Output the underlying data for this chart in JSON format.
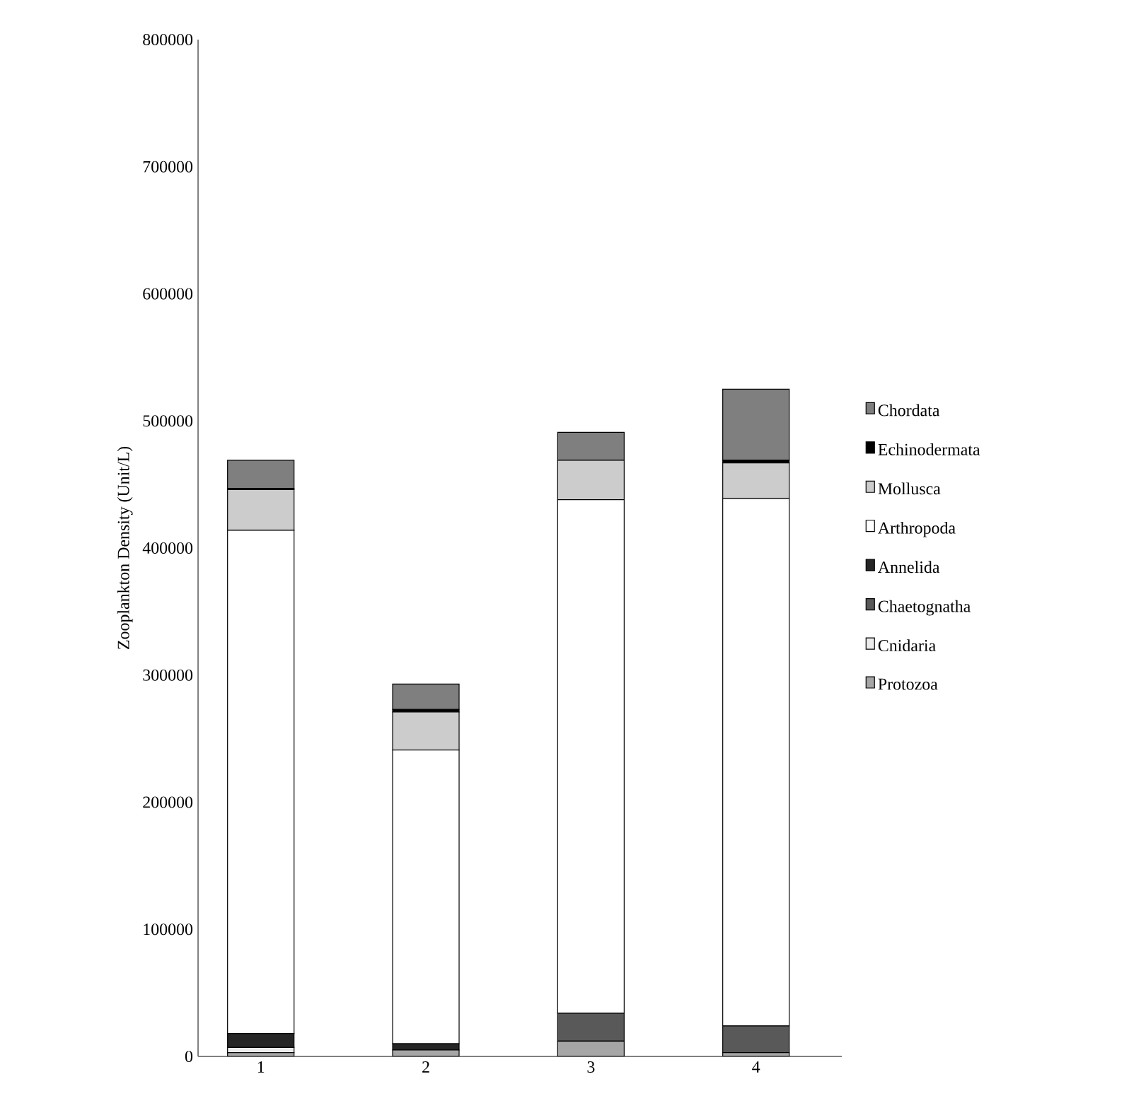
{
  "chart_data": {
    "type": "bar",
    "stacked": true,
    "ylabel": "Zooplankton Density (Unit/L)",
    "categories": [
      "1",
      "2",
      "3",
      "4"
    ],
    "series": [
      {
        "name": "Protozoa",
        "color": "#a6a6a6",
        "values": [
          3000,
          5000,
          12000,
          3000
        ]
      },
      {
        "name": "Cnidaria",
        "color": "#ececec",
        "values": [
          4000,
          0,
          0,
          0
        ]
      },
      {
        "name": "Chaetognatha",
        "color": "#595959",
        "values": [
          0,
          0,
          22000,
          21000
        ]
      },
      {
        "name": "Annelida",
        "color": "#262626",
        "values": [
          11000,
          5000,
          0,
          0
        ]
      },
      {
        "name": "Arthropoda",
        "color": "#ffffff",
        "values": [
          396000,
          231000,
          404000,
          415000
        ]
      },
      {
        "name": "Mollusca",
        "color": "#cccccc",
        "values": [
          32000,
          30000,
          31000,
          28000
        ]
      },
      {
        "name": "Echinodermata",
        "color": "#000000",
        "values": [
          1000,
          2000,
          0,
          2000
        ]
      },
      {
        "name": "Chordata",
        "color": "#7f7f7f",
        "values": [
          22000,
          20000,
          22000,
          56000
        ]
      }
    ],
    "ylim": [
      0,
      800000
    ],
    "yticks": [
      0,
      100000,
      200000,
      300000,
      400000,
      500000,
      600000,
      700000,
      800000
    ],
    "grid": false,
    "legend": "right"
  }
}
